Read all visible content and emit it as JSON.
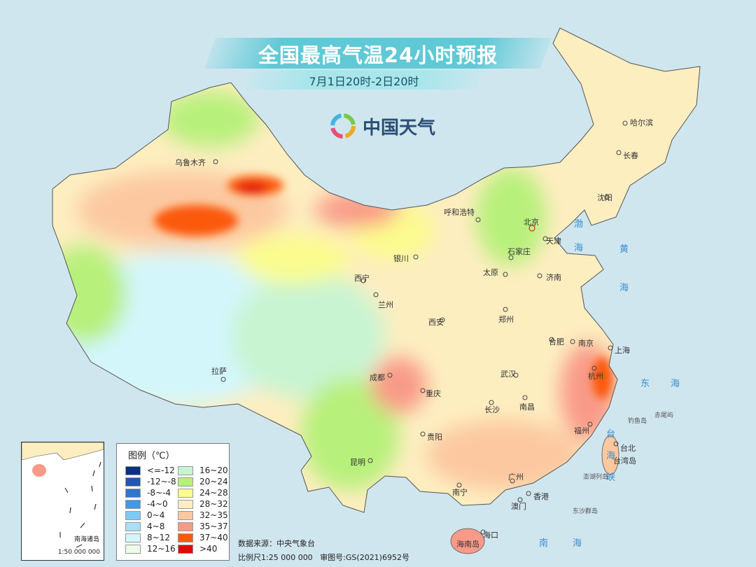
{
  "header": {
    "title": "全国最高气温24小时预报",
    "subtitle": "7月1日20时-2日20时",
    "logo_text": "中国天气",
    "logo_icon": "swirl-logo-icon"
  },
  "map": {
    "cities": [
      "乌鲁木齐",
      "哈尔滨",
      "长春",
      "沈阳",
      "呼和浩特",
      "北京",
      "天津",
      "石家庄",
      "太原",
      "济南",
      "银川",
      "西宁",
      "兰州",
      "西安",
      "郑州",
      "合肥",
      "南京",
      "上海",
      "杭州",
      "武汉",
      "成都",
      "重庆",
      "长沙",
      "南昌",
      "福州",
      "拉萨",
      "贵阳",
      "昆明",
      "南宁",
      "广州",
      "香港",
      "澳门",
      "海口",
      "台北"
    ],
    "seas": [
      "渤",
      "海",
      "黄",
      "海",
      "东",
      "海",
      "南",
      "海",
      "台",
      "海",
      "峡"
    ],
    "islands": [
      "钓鱼岛",
      "赤尾屿",
      "台湾岛",
      "澎湖列岛",
      "东沙群岛",
      "海南岛"
    ],
    "capital_color": "#d0021b",
    "sea_color": "#cfe6ef"
  },
  "legend": {
    "title": "图例（℃）",
    "items": [
      {
        "label": "<=-12",
        "color": "#0a2f86"
      },
      {
        "label": "-12~-8",
        "color": "#1e58b0"
      },
      {
        "label": "-8~-4",
        "color": "#2f74d0"
      },
      {
        "label": "-4~0",
        "color": "#3d9ae6"
      },
      {
        "label": "0~4",
        "color": "#7ccafa"
      },
      {
        "label": "4~8",
        "color": "#a9e0f5"
      },
      {
        "label": "8~12",
        "color": "#d3f6fb"
      },
      {
        "label": "12~16",
        "color": "#eefbe8"
      },
      {
        "label": "16~20",
        "color": "#c8f4d2"
      },
      {
        "label": "20~24",
        "color": "#b8f07c"
      },
      {
        "label": "24~28",
        "color": "#fbfc8e"
      },
      {
        "label": "28~32",
        "color": "#fdeec0"
      },
      {
        "label": "32~35",
        "color": "#fcc8a0"
      },
      {
        "label": "35~37",
        "color": "#f99a88"
      },
      {
        "label": "37~40",
        "color": "#fb5a0e"
      },
      {
        "label": ">40",
        "color": "#e00a0a"
      }
    ]
  },
  "inset": {
    "name": "南海诸岛",
    "scale": "1:50 000 000"
  },
  "footer": {
    "source": "数据来源：中央气象台",
    "scale": "比例尺1:25 000 000",
    "approval": "审图号:GS(2021)6952号"
  }
}
